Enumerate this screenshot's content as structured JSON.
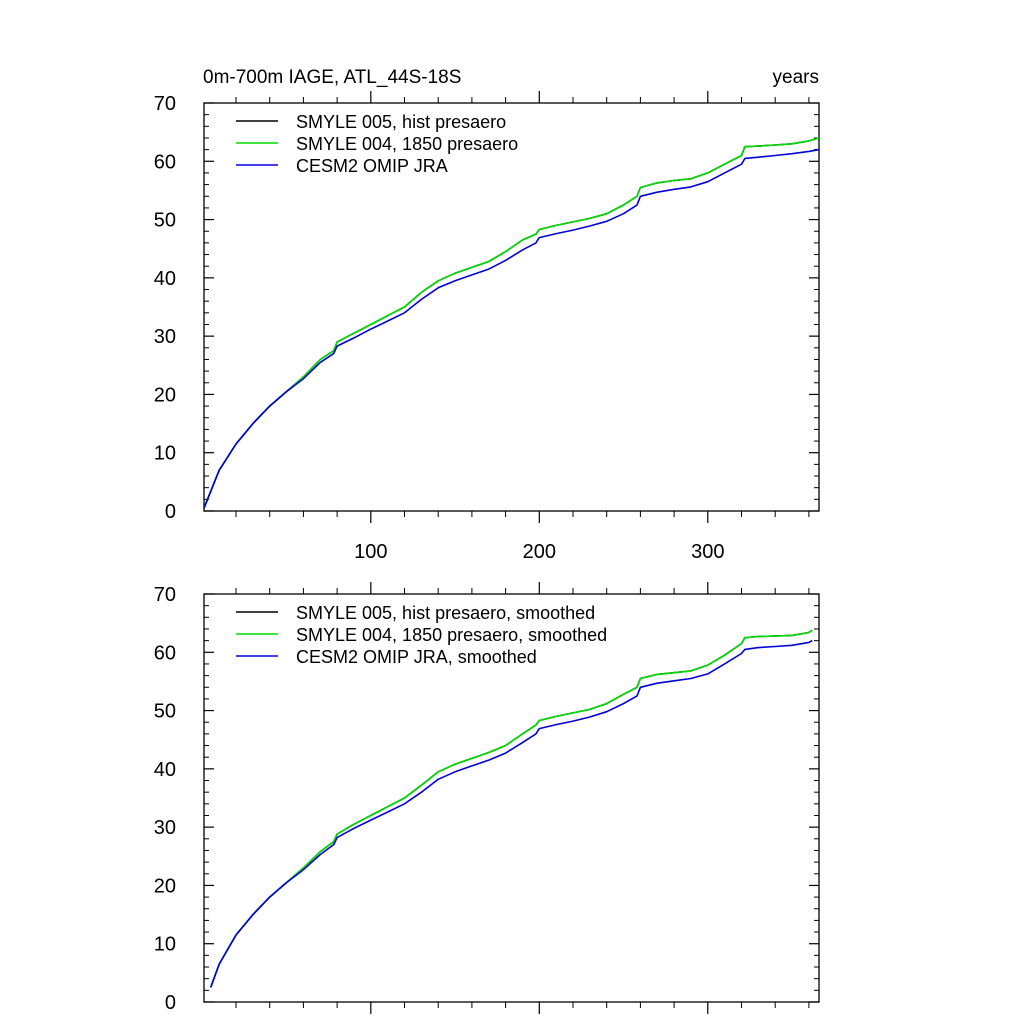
{
  "chart_data": [
    {
      "type": "line",
      "title": "0m-700m IAGE, ATL_44S-18S",
      "units": "years",
      "xlim": [
        1,
        366
      ],
      "ylim": [
        0,
        70
      ],
      "x_ticks": [
        100,
        200,
        300
      ],
      "y_ticks": [
        0,
        10,
        20,
        30,
        40,
        50,
        60,
        70
      ],
      "x_tick_labels": [
        "100",
        "200",
        "300"
      ],
      "y_tick_labels": [
        "0",
        "10",
        "20",
        "30",
        "40",
        "50",
        "60",
        "70"
      ],
      "legend_position": "top-left",
      "series": [
        {
          "name": "SMYLE 005, hist presaero",
          "color": "#000000",
          "x": [
            1,
            10,
            20,
            30,
            40,
            50,
            60,
            70,
            78,
            80,
            90,
            100,
            110,
            120,
            130,
            140,
            150,
            160,
            170,
            180,
            190,
            198,
            200,
            210,
            220,
            230,
            240,
            250,
            258,
            260,
            270,
            280,
            290,
            300,
            310,
            320,
            322,
            330,
            340,
            350,
            360,
            366
          ],
          "values": [
            0.5,
            7,
            11.5,
            15,
            18,
            20.5,
            23,
            26,
            27.5,
            29,
            30.5,
            32,
            33.5,
            35,
            37.5,
            39.5,
            40.8,
            41.8,
            42.8,
            44.5,
            46.5,
            47.5,
            48.3,
            49,
            49.6,
            50.2,
            51,
            52.5,
            54,
            55.5,
            56.3,
            56.7,
            57,
            58,
            59.5,
            61,
            62.5,
            62.6,
            62.8,
            63,
            63.5,
            64
          ]
        },
        {
          "name": "SMYLE 004, 1850 presaero",
          "color": "#00dd00",
          "x": [
            1,
            10,
            20,
            30,
            40,
            50,
            60,
            70,
            78,
            80,
            90,
            100,
            110,
            120,
            130,
            140,
            150,
            160,
            170,
            180,
            190,
            198,
            200,
            210,
            220,
            230,
            240,
            250,
            258,
            260,
            270,
            280,
            290,
            300,
            310,
            320,
            322,
            330,
            340,
            350,
            360,
            366
          ],
          "values": [
            0.5,
            7,
            11.5,
            15,
            18,
            20.5,
            23,
            26,
            27.5,
            29,
            30.5,
            32,
            33.5,
            35,
            37.5,
            39.5,
            40.8,
            41.8,
            42.8,
            44.5,
            46.5,
            47.5,
            48.3,
            49,
            49.6,
            50.2,
            51,
            52.5,
            54,
            55.5,
            56.3,
            56.7,
            57,
            58,
            59.5,
            61,
            62.5,
            62.6,
            62.8,
            63,
            63.5,
            64
          ]
        },
        {
          "name": "CESM2 OMIP JRA",
          "color": "#0000dd",
          "x": [
            1,
            10,
            20,
            30,
            40,
            50,
            60,
            70,
            78,
            80,
            90,
            100,
            110,
            120,
            130,
            140,
            150,
            160,
            170,
            180,
            190,
            198,
            200,
            210,
            220,
            230,
            240,
            250,
            258,
            260,
            270,
            280,
            290,
            300,
            310,
            320,
            322,
            330,
            340,
            350,
            360,
            366
          ],
          "values": [
            0.5,
            7,
            11.5,
            15,
            18,
            20.5,
            22.7,
            25.5,
            27,
            28.3,
            29.7,
            31.2,
            32.6,
            34,
            36.3,
            38.3,
            39.5,
            40.5,
            41.5,
            43,
            44.8,
            46,
            46.9,
            47.6,
            48.2,
            48.9,
            49.7,
            51,
            52.5,
            54,
            54.7,
            55.2,
            55.6,
            56.5,
            58,
            59.5,
            60.5,
            60.7,
            61,
            61.3,
            61.7,
            62
          ]
        }
      ]
    },
    {
      "type": "line",
      "title": "",
      "xlim": [
        1,
        366
      ],
      "ylim": [
        0,
        70
      ],
      "x_ticks": [
        100,
        200,
        300
      ],
      "y_ticks": [
        0,
        10,
        20,
        30,
        40,
        50,
        60,
        70
      ],
      "x_tick_labels": [],
      "y_tick_labels": [
        "0",
        "10",
        "20",
        "30",
        "40",
        "50",
        "60",
        "70"
      ],
      "legend_position": "top-left",
      "series": [
        {
          "name": "SMYLE 005, hist presaero, smoothed",
          "color": "#000000",
          "x": [
            5,
            10,
            20,
            30,
            40,
            50,
            60,
            70,
            78,
            80,
            90,
            100,
            110,
            120,
            130,
            140,
            150,
            160,
            170,
            180,
            190,
            198,
            200,
            210,
            220,
            230,
            240,
            250,
            258,
            260,
            270,
            280,
            290,
            300,
            310,
            320,
            322,
            330,
            340,
            350,
            360,
            362
          ],
          "values": [
            2.5,
            6.5,
            11.5,
            15,
            18,
            20.5,
            23,
            25.8,
            27.5,
            28.8,
            30.5,
            32,
            33.5,
            35,
            37.2,
            39.5,
            40.8,
            41.8,
            42.8,
            44,
            46,
            47.5,
            48.3,
            49,
            49.6,
            50.2,
            51.2,
            52.8,
            54,
            55.5,
            56.2,
            56.5,
            56.8,
            57.8,
            59.5,
            61.5,
            62.5,
            62.7,
            62.8,
            62.9,
            63.4,
            63.8
          ]
        },
        {
          "name": "SMYLE 004, 1850 presaero, smoothed",
          "color": "#00dd00",
          "x": [
            5,
            10,
            20,
            30,
            40,
            50,
            60,
            70,
            78,
            80,
            90,
            100,
            110,
            120,
            130,
            140,
            150,
            160,
            170,
            180,
            190,
            198,
            200,
            210,
            220,
            230,
            240,
            250,
            258,
            260,
            270,
            280,
            290,
            300,
            310,
            320,
            322,
            330,
            340,
            350,
            360,
            362
          ],
          "values": [
            2.5,
            6.5,
            11.5,
            15,
            18,
            20.5,
            23,
            25.8,
            27.5,
            28.8,
            30.5,
            32,
            33.5,
            35,
            37.2,
            39.5,
            40.8,
            41.8,
            42.8,
            44,
            46,
            47.5,
            48.3,
            49,
            49.6,
            50.2,
            51.2,
            52.8,
            54,
            55.5,
            56.2,
            56.5,
            56.8,
            57.8,
            59.5,
            61.5,
            62.5,
            62.7,
            62.8,
            62.9,
            63.4,
            63.8
          ]
        },
        {
          "name": "CESM2 OMIP JRA, smoothed",
          "color": "#0000dd",
          "x": [
            5,
            10,
            20,
            30,
            40,
            50,
            60,
            70,
            78,
            80,
            90,
            100,
            110,
            120,
            130,
            140,
            150,
            160,
            170,
            180,
            190,
            198,
            200,
            210,
            220,
            230,
            240,
            250,
            258,
            260,
            270,
            280,
            290,
            300,
            310,
            320,
            322,
            330,
            340,
            350,
            360,
            362
          ],
          "values": [
            2.5,
            6.5,
            11.5,
            15,
            18,
            20.5,
            22.7,
            25.3,
            27,
            28.2,
            29.8,
            31.2,
            32.6,
            34,
            36,
            38.2,
            39.5,
            40.5,
            41.5,
            42.7,
            44.5,
            46,
            46.9,
            47.6,
            48.2,
            48.9,
            49.8,
            51.2,
            52.5,
            54,
            54.7,
            55.1,
            55.5,
            56.3,
            58,
            59.8,
            60.5,
            60.8,
            61,
            61.2,
            61.7,
            62
          ]
        }
      ]
    }
  ]
}
